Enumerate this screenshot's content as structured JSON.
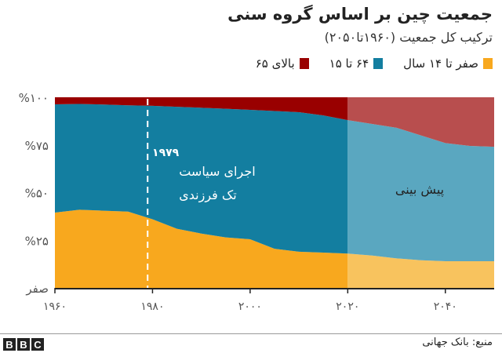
{
  "title": "جمعیت چین بر اساس گروه سنی",
  "subtitle": "ترکیب کل جمعیت (۱۹۶۰تا۲۰۵۰)",
  "legend": [
    {
      "label": "صفر تا ۱۴ سال",
      "color": "#f8a81e"
    },
    {
      "label": "۶۴ تا ۱۵",
      "color": "#137ea0"
    },
    {
      "label": "بالای ۶۵",
      "color": "#990000"
    }
  ],
  "annotation": {
    "year_label": "۱۹۷۹",
    "line1": "اجرای سیاست",
    "line2": "تک فرزندی",
    "year": 1979
  },
  "forecast_label": "پیش بینی",
  "source": "منبع: بانک جهانی",
  "logo": "BBC",
  "chart_data": {
    "type": "area",
    "stacked": true,
    "x": [
      1960,
      1965,
      1970,
      1975,
      1980,
      1985,
      1990,
      1995,
      2000,
      2005,
      2010,
      2015,
      2020,
      2025,
      2030,
      2035,
      2040,
      2045,
      2050
    ],
    "forecast_from": 2020,
    "series": [
      {
        "name": "صفر تا ۱۴ سال",
        "color": "#f8a81e",
        "forecast_color": "#f8c35e",
        "values": [
          39.5,
          41,
          40.5,
          40,
          36,
          31,
          28.5,
          26.5,
          25.5,
          20.5,
          19,
          18.5,
          18,
          17,
          15.5,
          14.5,
          14,
          14,
          14
        ]
      },
      {
        "name": "۶۴ تا ۱۵",
        "color": "#137ea0",
        "forecast_color": "#5aa7c0",
        "values": [
          56.8,
          55.5,
          55.7,
          55.8,
          59.5,
          64,
          66,
          67.5,
          67.9,
          72.3,
          73.2,
          72,
          70,
          69,
          68.5,
          65.5,
          62,
          60.5,
          60
        ]
      },
      {
        "name": "بالای ۶۵",
        "color": "#990000",
        "forecast_color": "#b84e4e",
        "values": [
          3.7,
          3.5,
          3.8,
          4.2,
          4.5,
          5,
          5.5,
          6,
          6.6,
          7.2,
          7.8,
          9.5,
          12,
          14,
          16,
          20,
          24,
          25.5,
          26
        ]
      }
    ],
    "xlim": [
      1960,
      2050
    ],
    "ylim": [
      0,
      100
    ],
    "xticks": [
      1960,
      1980,
      2000,
      2020,
      2040
    ],
    "xtick_labels": [
      "۱۹۶۰",
      "۱۹۸۰",
      "۲۰۰۰",
      "۲۰۲۰",
      "۲۰۴۰"
    ],
    "yticks": [
      0,
      25,
      50,
      75,
      100
    ],
    "ytick_labels": [
      "صفر",
      "%۲۵",
      "%۵۰",
      "%۷۵",
      "%۱۰۰"
    ],
    "grid": false,
    "legend_position": "top-right"
  }
}
